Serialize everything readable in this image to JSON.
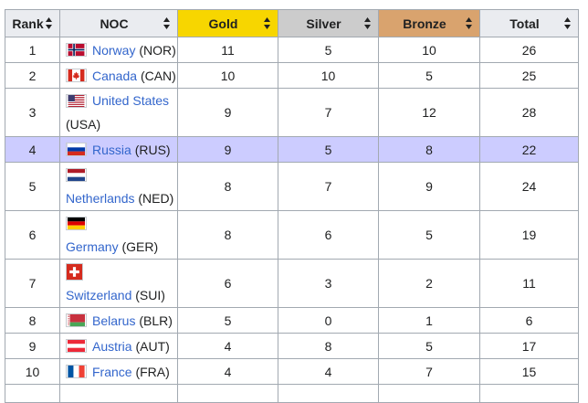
{
  "columns": {
    "rank": "Rank",
    "noc": "NOC",
    "gold": "Gold",
    "silver": "Silver",
    "bronze": "Bronze",
    "total": "Total"
  },
  "header_colors": {
    "gold": "#f7d600",
    "silver": "#cccccc",
    "bronze": "#d9a36e"
  },
  "highlight_color": "#ccccff",
  "rows": [
    {
      "rank": "1",
      "country": "Norway",
      "code": "(NOR)",
      "flag": "norway-flag-icon",
      "gold": "11",
      "silver": "5",
      "bronze": "10",
      "total": "26"
    },
    {
      "rank": "2",
      "country": "Canada",
      "code": "(CAN)",
      "flag": "canada-flag-icon",
      "gold": "10",
      "silver": "10",
      "bronze": "5",
      "total": "25"
    },
    {
      "rank": "3",
      "country": "United States",
      "code": "(USA)",
      "flag": "usa-flag-icon",
      "gold": "9",
      "silver": "7",
      "bronze": "12",
      "total": "28"
    },
    {
      "rank": "4",
      "country": "Russia",
      "code": "(RUS)",
      "flag": "russia-flag-icon",
      "gold": "9",
      "silver": "5",
      "bronze": "8",
      "total": "22"
    },
    {
      "rank": "5",
      "country": "Netherlands",
      "code": "(NED)",
      "flag": "netherlands-flag-icon",
      "gold": "8",
      "silver": "7",
      "bronze": "9",
      "total": "24"
    },
    {
      "rank": "6",
      "country": "Germany",
      "code": "(GER)",
      "flag": "germany-flag-icon",
      "gold": "8",
      "silver": "6",
      "bronze": "5",
      "total": "19"
    },
    {
      "rank": "7",
      "country": "Switzerland",
      "code": "(SUI)",
      "flag": "switzerland-flag-icon",
      "gold": "6",
      "silver": "3",
      "bronze": "2",
      "total": "11"
    },
    {
      "rank": "8",
      "country": "Belarus",
      "code": "(BLR)",
      "flag": "belarus-flag-icon",
      "gold": "5",
      "silver": "0",
      "bronze": "1",
      "total": "6"
    },
    {
      "rank": "9",
      "country": "Austria",
      "code": "(AUT)",
      "flag": "austria-flag-icon",
      "gold": "4",
      "silver": "8",
      "bronze": "5",
      "total": "17"
    },
    {
      "rank": "10",
      "country": "France",
      "code": "(FRA)",
      "flag": "france-flag-icon",
      "gold": "4",
      "silver": "4",
      "bronze": "7",
      "total": "15"
    }
  ]
}
